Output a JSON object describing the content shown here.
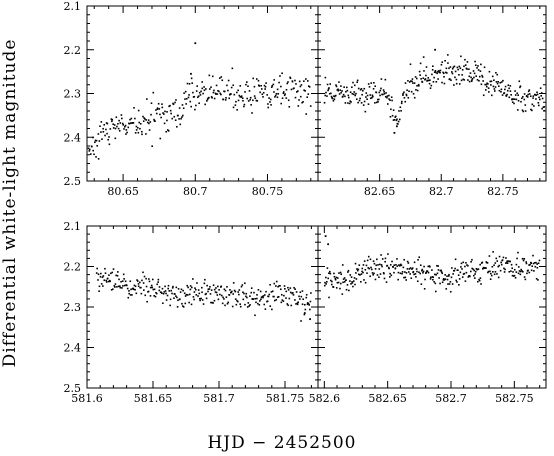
{
  "chart_data": {
    "type": "scatter",
    "xlabel": "HJD − 2452500",
    "ylabel": "Differential white-light magnitude",
    "yaxis_inverted": true,
    "grid": false,
    "panels": [
      {
        "id": "top-left",
        "xlim": [
          80.625,
          80.785
        ],
        "ylim": [
          2.5,
          2.1
        ],
        "xticks": [
          80.65,
          80.7,
          80.75
        ],
        "xtick_labels": [
          "80.65",
          "80.7",
          "80.75"
        ],
        "yticks": [
          2.1,
          2.2,
          2.3,
          2.4,
          2.5
        ],
        "ytick_labels": [
          "2.1",
          "2.2",
          "2.3",
          "2.4",
          "2.5"
        ],
        "series": [
          {
            "x_range": [
              80.625,
              80.78
            ],
            "trend": [
              [
                80.625,
                2.43
              ],
              [
                80.635,
                2.41
              ],
              [
                80.645,
                2.37
              ],
              [
                80.655,
                2.365
              ],
              [
                80.675,
                2.36
              ],
              [
                80.69,
                2.345
              ],
              [
                80.695,
                2.3
              ],
              [
                80.705,
                2.295
              ],
              [
                80.73,
                2.305
              ],
              [
                80.75,
                2.3
              ],
              [
                80.77,
                2.29
              ],
              [
                80.78,
                2.295
              ]
            ],
            "scatter_mag": 0.018,
            "n_points": 330,
            "outliers": [
              [
                80.7,
                2.185
              ],
              [
                80.697,
                2.255
              ]
            ]
          }
        ]
      },
      {
        "id": "top-right",
        "xlim": [
          82.6,
          82.785
        ],
        "ylim": [
          2.5,
          2.1
        ],
        "xticks": [
          82.65,
          82.7,
          82.75
        ],
        "xtick_labels": [
          "82.65",
          "82.7",
          "82.75"
        ],
        "yticks": [
          2.1,
          2.2,
          2.3,
          2.4,
          2.5
        ],
        "ytick_labels": [],
        "series": [
          {
            "x_range": [
              82.605,
              82.785
            ],
            "trend": [
              [
                82.605,
                2.295
              ],
              [
                82.63,
                2.305
              ],
              [
                82.655,
                2.3
              ],
              [
                82.66,
                2.33
              ],
              [
                82.665,
                2.365
              ],
              [
                82.67,
                2.3
              ],
              [
                82.685,
                2.27
              ],
              [
                82.7,
                2.255
              ],
              [
                82.715,
                2.25
              ],
              [
                82.735,
                2.265
              ],
              [
                82.755,
                2.3
              ],
              [
                82.77,
                2.31
              ],
              [
                82.785,
                2.32
              ]
            ],
            "scatter_mag": 0.016,
            "n_points": 380,
            "outliers": [
              [
                82.662,
                2.39
              ],
              [
                82.664,
                2.375
              ],
              [
                82.695,
                2.2
              ]
            ]
          }
        ]
      },
      {
        "id": "bottom-left",
        "xlim": [
          581.6,
          581.775
        ],
        "ylim": [
          2.5,
          2.1
        ],
        "xticks": [
          581.6,
          581.65,
          581.7,
          581.75
        ],
        "xtick_labels": [
          "581.6",
          "581.65",
          "581.7",
          "581.75"
        ],
        "yticks": [
          2.1,
          2.2,
          2.3,
          2.4,
          2.5
        ],
        "ytick_labels": [
          "2.1",
          "2.2",
          "2.3",
          "2.4",
          "2.5"
        ],
        "series": [
          {
            "x_range": [
              581.607,
              581.77
            ],
            "trend": [
              [
                581.607,
                2.225
              ],
              [
                581.625,
                2.245
              ],
              [
                581.65,
                2.255
              ],
              [
                581.67,
                2.27
              ],
              [
                581.69,
                2.265
              ],
              [
                581.71,
                2.27
              ],
              [
                581.73,
                2.28
              ],
              [
                581.75,
                2.27
              ],
              [
                581.77,
                2.285
              ]
            ],
            "scatter_mag": 0.016,
            "n_points": 340,
            "outliers": [
              [
                581.769,
                2.33
              ],
              [
                581.765,
                2.315
              ]
            ]
          }
        ]
      },
      {
        "id": "bottom-right",
        "xlim": [
          582.595,
          582.775
        ],
        "ylim": [
          2.5,
          2.1
        ],
        "xticks": [
          582.6,
          582.65,
          582.7,
          582.75
        ],
        "xtick_labels": [
          "582.6",
          "582.65",
          "582.7",
          "582.75"
        ],
        "yticks": [
          2.1,
          2.2,
          2.3,
          2.4,
          2.5
        ],
        "ytick_labels": [],
        "series": [
          {
            "x_range": [
              582.6,
              582.77
            ],
            "trend": [
              [
                582.6,
                2.23
              ],
              [
                582.615,
                2.24
              ],
              [
                582.63,
                2.215
              ],
              [
                582.645,
                2.2
              ],
              [
                582.665,
                2.205
              ],
              [
                582.68,
                2.225
              ],
              [
                582.7,
                2.225
              ],
              [
                582.72,
                2.21
              ],
              [
                582.74,
                2.2
              ],
              [
                582.76,
                2.21
              ],
              [
                582.77,
                2.195
              ]
            ],
            "scatter_mag": 0.017,
            "n_points": 370,
            "outliers": [
              [
                582.601,
                2.125
              ],
              [
                582.603,
                2.145
              ]
            ]
          }
        ]
      }
    ]
  }
}
